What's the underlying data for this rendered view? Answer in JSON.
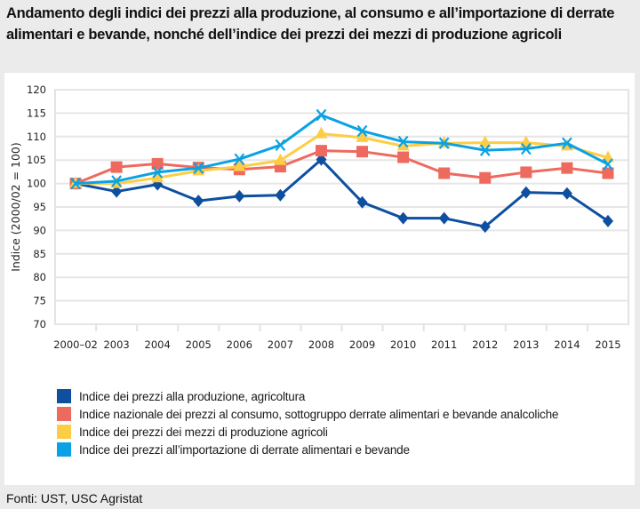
{
  "title": "Andamento degli indici dei prezzi alla produzione, al consumo e all’importazione di derrate alimentari e bevande, nonché dell’indice dei prezzi dei mezzi di produzione agricoli",
  "source": "Fonti: UST, USC Agristat",
  "chart_data": {
    "type": "line",
    "title": "Andamento degli indici dei prezzi alla produzione, al consumo e all’importazione di derrate alimentari e bevande, nonché dell’indice dei prezzi dei mezzi di produzione agricoli",
    "xlabel": "",
    "ylabel": "Indice (2000/02 = 100)",
    "ylim": [
      70,
      120
    ],
    "yticks": [
      70,
      75,
      80,
      85,
      90,
      95,
      100,
      105,
      110,
      115,
      120
    ],
    "grid": true,
    "legend_position": "bottom",
    "categories": [
      "2000–02",
      "2003",
      "2004",
      "2005",
      "2006",
      "2007",
      "2008",
      "2009",
      "2010",
      "2011",
      "2012",
      "2013",
      "2014",
      "2015"
    ],
    "series": [
      {
        "name": "Indice dei prezzi alla produzione, agricoltura",
        "color": "#0e4fa0",
        "marker": "diamond",
        "values": [
          100,
          98.3,
          99.8,
          96.3,
          97.3,
          97.5,
          105.1,
          96.0,
          92.6,
          92.6,
          90.8,
          98.1,
          97.9,
          92.0
        ]
      },
      {
        "name": "Indice nazionale dei prezzi al consumo, sottogruppo derrate alimentari e bevande analcoliche",
        "color": "#ee6a5e",
        "marker": "square",
        "values": [
          100,
          103.5,
          104.2,
          103.4,
          103.0,
          103.6,
          107.0,
          106.8,
          105.6,
          102.2,
          101.2,
          102.4,
          103.3,
          102.2
        ]
      },
      {
        "name": "Indice dei prezzi dei mezzi di produzione agricoli",
        "color": "#fdcd45",
        "marker": "triangle",
        "values": [
          100,
          100.0,
          101.2,
          102.7,
          103.6,
          104.9,
          110.6,
          109.8,
          108.0,
          108.6,
          108.7,
          108.7,
          108.0,
          105.5
        ]
      },
      {
        "name": "Indice dei prezzi all’importazione di derrate alimentari e bevande",
        "color": "#0aa2e4",
        "marker": "x",
        "values": [
          100,
          100.5,
          102.4,
          103.3,
          105.2,
          108.2,
          114.6,
          111.2,
          108.9,
          108.6,
          107.1,
          107.4,
          108.6,
          104.1
        ]
      }
    ]
  }
}
